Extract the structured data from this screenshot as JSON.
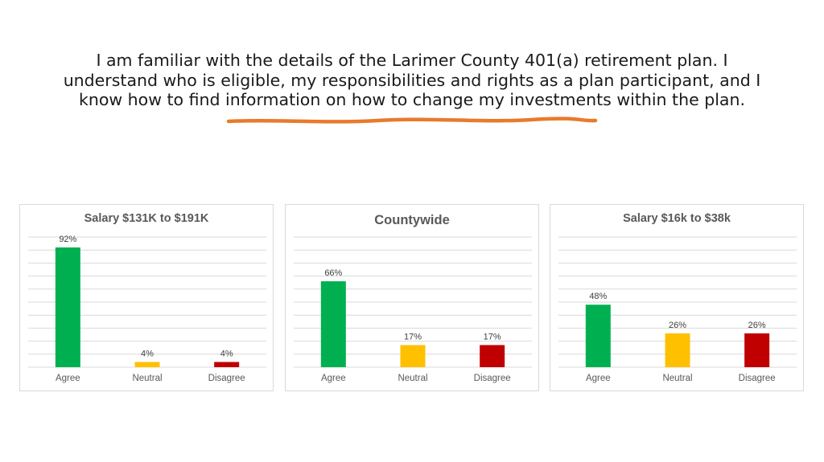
{
  "slide": {
    "heading": "I am familiar with the details of the Larimer County 401(a) retirement plan. I understand who is eligible, my responsibilities and rights as a plan participant, and I know how to find information on how to change my investments within the plan.",
    "accent_color": "#e97a2c"
  },
  "chart_data": [
    {
      "type": "bar",
      "title": "Salary $131K to $191K",
      "categories": [
        "Agree",
        "Neutral",
        "Disagree"
      ],
      "values": [
        92,
        4,
        4
      ],
      "value_labels": [
        "92%",
        "4%",
        "4%"
      ],
      "colors": [
        "#00b050",
        "#ffc000",
        "#c00000"
      ],
      "ylim": [
        0,
        100
      ],
      "grid": true,
      "legend": "none"
    },
    {
      "type": "bar",
      "title": "Countywide",
      "categories": [
        "Agree",
        "Neutral",
        "Disagree"
      ],
      "values": [
        66,
        17,
        17
      ],
      "value_labels": [
        "66%",
        "17%",
        "17%"
      ],
      "colors": [
        "#00b050",
        "#ffc000",
        "#c00000"
      ],
      "ylim": [
        0,
        100
      ],
      "grid": true,
      "legend": "none"
    },
    {
      "type": "bar",
      "title": "Salary $16k to $38k",
      "categories": [
        "Agree",
        "Neutral",
        "Disagree"
      ],
      "values": [
        48,
        26,
        26
      ],
      "value_labels": [
        "48%",
        "26%",
        "26%"
      ],
      "colors": [
        "#00b050",
        "#ffc000",
        "#c00000"
      ],
      "ylim": [
        0,
        100
      ],
      "grid": true,
      "legend": "none"
    }
  ]
}
